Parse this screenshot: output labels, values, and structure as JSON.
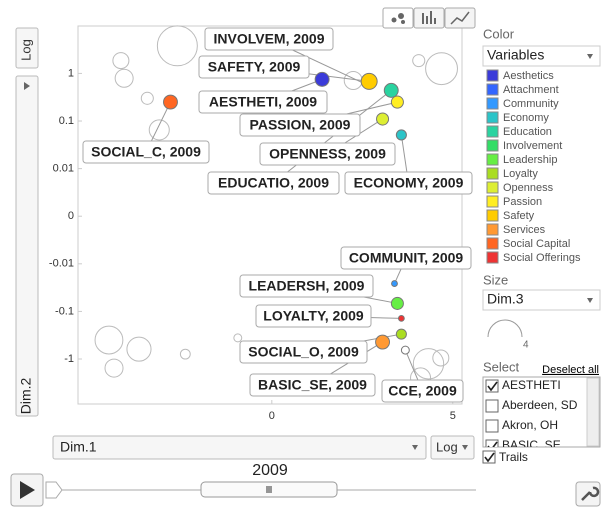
{
  "chart_data": {
    "type": "bubble",
    "yscale": "symlog",
    "xlim": [
      -5.3,
      5.2
    ],
    "ylim": [
      -8,
      9
    ],
    "xticks": [
      0,
      5
    ],
    "yticks": [
      1,
      0.1,
      0.01,
      0,
      -0.01,
      -0.1,
      -1
    ],
    "x_label": "Dim.1",
    "y_label": "Dim.2",
    "x_scale_button": "Log",
    "y_scale_button": "Log",
    "color_heading": "Color",
    "color_by": "Variables",
    "size_heading": "Size",
    "size_by": "Dim.3",
    "size_legend_value": 4,
    "legend": [
      {
        "name": "Aesthetics",
        "color": "#3b3bd9"
      },
      {
        "name": "Attachment",
        "color": "#3366ff"
      },
      {
        "name": "Community",
        "color": "#3399ff"
      },
      {
        "name": "Economy",
        "color": "#2cc4c8"
      },
      {
        "name": "Education",
        "color": "#2ad3a0"
      },
      {
        "name": "Involvement",
        "color": "#33dd66"
      },
      {
        "name": "Leadership",
        "color": "#66ee44"
      },
      {
        "name": "Loyalty",
        "color": "#aadd22"
      },
      {
        "name": "Openness",
        "color": "#ddee33"
      },
      {
        "name": "Passion",
        "color": "#ffee22"
      },
      {
        "name": "Safety",
        "color": "#ffcc00"
      },
      {
        "name": "Services",
        "color": "#ff9933"
      },
      {
        "name": "Social Capital",
        "color": "#ff6622"
      },
      {
        "name": "Social Offerings",
        "color": "#ee3333"
      }
    ],
    "points": [
      {
        "label": "INVOLVEM, 2009",
        "color": "#33dd66",
        "x": 2.6,
        "y": 0.59,
        "size": 0.07
      },
      {
        "label": "SAFETY, 2009",
        "color": "#ffcc00",
        "x": 2.69,
        "y": 0.68,
        "size": 0.53
      },
      {
        "label": "AESTHETI, 2009",
        "color": "#3b3bd9",
        "x": 1.39,
        "y": 0.75,
        "size": 0.4
      },
      {
        "label": "PASSION, 2009",
        "color": "#ffee22",
        "x": 3.47,
        "y": 0.25,
        "size": 0.3
      },
      {
        "label": "SOCIAL_C, 2009",
        "color": "#ff6622",
        "x": -2.8,
        "y": 0.25,
        "size": 0.4
      },
      {
        "label": "OPENNESS, 2009",
        "color": "#ddee33",
        "x": 3.06,
        "y": 0.11,
        "size": 0.3
      },
      {
        "label": "EDUCATIO, 2009",
        "color": "#2ad3a0",
        "x": 3.3,
        "y": 0.44,
        "size": 0.4
      },
      {
        "label": "ECONOMY, 2009",
        "color": "#2cc4c8",
        "x": 3.58,
        "y": 0.051,
        "size": 0.21
      },
      {
        "label": "COMMUNIT, 2009",
        "color": "#3399ff",
        "x": 3.39,
        "y": -0.026,
        "size": 0.07
      },
      {
        "label": "LEADERSH, 2009",
        "color": "#66ee44",
        "x": 3.47,
        "y": -0.068,
        "size": 0.3
      },
      {
        "label": "LOYALTY, 2009",
        "color": "#ee3333",
        "x": 3.58,
        "y": -0.14,
        "size": 0.07
      },
      {
        "label": "SOCIAL_O, 2009",
        "color": "#aadd22",
        "x": 3.58,
        "y": -0.3,
        "size": 0.21
      },
      {
        "label": "BASIC_SE, 2009",
        "color": "#ff9933",
        "x": 3.06,
        "y": -0.44,
        "size": 0.4
      },
      {
        "label": "CCE, 2009",
        "color": "#ffffff",
        "x": 3.69,
        "y": -0.65,
        "size": 0.13
      }
    ],
    "background_points": [
      {
        "x": -2.61,
        "y": 3.8,
        "size": 3.3
      },
      {
        "x": -4.17,
        "y": 1.86,
        "size": 0.53
      },
      {
        "x": -4.08,
        "y": 0.79,
        "size": 0.67
      },
      {
        "x": -3.44,
        "y": 0.3,
        "size": 0.3
      },
      {
        "x": -3.11,
        "y": 0.065,
        "size": 0.83
      },
      {
        "x": 4.69,
        "y": 1.26,
        "size": 2.1
      },
      {
        "x": 4.06,
        "y": 1.86,
        "size": 0.3
      },
      {
        "x": 2.25,
        "y": 0.71,
        "size": 0.67
      },
      {
        "x": -4.5,
        "y": -0.4,
        "size": 1.6
      },
      {
        "x": -3.67,
        "y": -0.62,
        "size": 1.2
      },
      {
        "x": -4.36,
        "y": -1.55,
        "size": 0.67
      },
      {
        "x": -2.39,
        "y": -0.79,
        "size": 0.2
      },
      {
        "x": -0.94,
        "y": -0.36,
        "size": 0.13
      },
      {
        "x": 4.33,
        "y": -1.26,
        "size": 1.9
      },
      {
        "x": 4.11,
        "y": -2.5,
        "size": 0.83
      },
      {
        "x": 4.67,
        "y": -0.95,
        "size": 0.53
      }
    ]
  },
  "controls": {
    "select_heading": "Select",
    "deselect_all": "Deselect all",
    "select_items": [
      {
        "label": "AESTHETI",
        "checked": true
      },
      {
        "label": "Aberdeen, SD",
        "checked": false
      },
      {
        "label": "Akron, OH",
        "checked": false
      },
      {
        "label": "BASIC_SE",
        "checked": true
      }
    ],
    "trails": {
      "label": "Trails",
      "checked": true
    },
    "time": "2009"
  }
}
